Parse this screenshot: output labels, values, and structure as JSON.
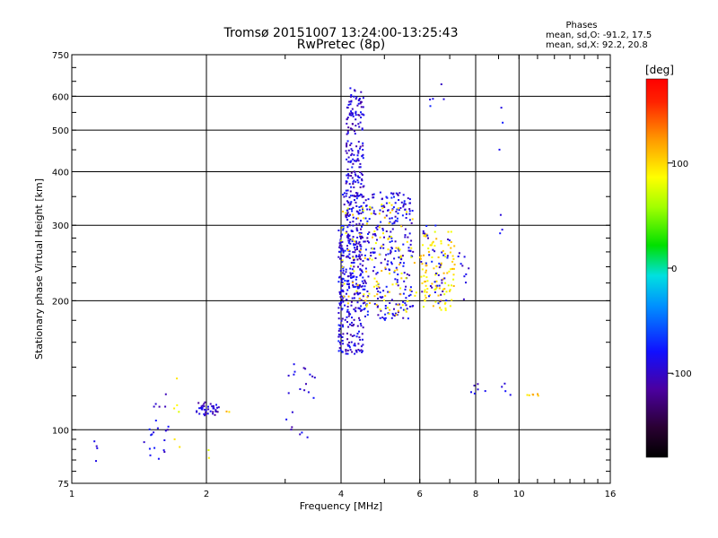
{
  "chart_data": {
    "type": "scatter",
    "title": "Tromsø 20151007 13:24:00-13:25:43",
    "subtitle": "RwPretec (8p)",
    "xlabel": "Frequency [MHz]",
    "ylabel": "Stationary phase Virtual Height [km]",
    "xscale": "log",
    "yscale": "log",
    "xlim": [
      1,
      16
    ],
    "ylim": [
      75,
      750
    ],
    "x_ticks": [
      1,
      2,
      4,
      6,
      8,
      10,
      16
    ],
    "x_tick_labels": [
      "1",
      "2",
      "4",
      "6",
      "8",
      "10",
      "16"
    ],
    "y_ticks": [
      75,
      100,
      200,
      300,
      400,
      500,
      600,
      750
    ],
    "y_tick_labels": [
      "75",
      "100",
      "200",
      "300",
      "400",
      "500",
      "600",
      "750"
    ],
    "grid": true,
    "stats": {
      "title": "Phases",
      "line_o": "mean, sd,O: -91.2, 17.5",
      "line_x": "mean, sd,X:  92.2, 20.8"
    },
    "colorbar": {
      "label": "[deg]",
      "range": [
        -180,
        180
      ],
      "ticks": [
        -100,
        0,
        100
      ],
      "tick_labels": [
        "-100",
        "0",
        "100"
      ],
      "colormap": "rainbow"
    },
    "clusters": [
      {
        "x_range": [
          1.12,
          1.14
        ],
        "y_range": [
          80,
          96
        ],
        "phase": -95,
        "count": 4
      },
      {
        "x_range": [
          1.45,
          1.65
        ],
        "y_range": [
          82,
          130
        ],
        "phase": -90,
        "count": 22
      },
      {
        "x_range": [
          1.6,
          1.75
        ],
        "y_range": [
          83,
          132
        ],
        "phase": 95,
        "count": 6
      },
      {
        "x_range": [
          1.9,
          2.15
        ],
        "y_range": [
          108,
          116
        ],
        "phase": -100,
        "count": 40
      },
      {
        "x_range": [
          2.2,
          2.25
        ],
        "y_range": [
          110,
          112
        ],
        "phase": 100,
        "count": 2
      },
      {
        "x_range": [
          3.0,
          3.5
        ],
        "y_range": [
          95,
          145
        ],
        "phase": -95,
        "count": 22
      },
      {
        "x_range": [
          3.95,
          4.05
        ],
        "y_range": [
          150,
          300
        ],
        "phase": -90,
        "count": 90
      },
      {
        "x_range": [
          4.1,
          4.5
        ],
        "y_range": [
          150,
          630
        ],
        "phase": -95,
        "count": 380
      },
      {
        "x_range": [
          4.0,
          5.8
        ],
        "y_range": [
          180,
          360
        ],
        "phase": -90,
        "count": 360
      },
      {
        "x_range": [
          4.0,
          5.9
        ],
        "y_range": [
          185,
          340
        ],
        "phase": 95,
        "count": 120
      },
      {
        "x_range": [
          6.0,
          7.2
        ],
        "y_range": [
          190,
          290
        ],
        "phase": 95,
        "count": 110
      },
      {
        "x_range": [
          6.0,
          7.0
        ],
        "y_range": [
          195,
          300
        ],
        "phase": -90,
        "count": 40
      },
      {
        "x_range": [
          6.3,
          6.8
        ],
        "y_range": [
          540,
          640
        ],
        "phase": -90,
        "count": 5
      },
      {
        "x_range": [
          7.2,
          7.8
        ],
        "y_range": [
          200,
          260
        ],
        "phase": -95,
        "count": 10
      },
      {
        "x_range": [
          7.8,
          8.5
        ],
        "y_range": [
          120,
          128
        ],
        "phase": -90,
        "count": 6
      },
      {
        "x_range": [
          9.0,
          9.2
        ],
        "y_range": [
          255,
          600
        ],
        "phase": -95,
        "count": 6
      },
      {
        "x_range": [
          9.0,
          9.6
        ],
        "y_range": [
          120,
          130
        ],
        "phase": -90,
        "count": 4
      },
      {
        "x_range": [
          10.4,
          11.2
        ],
        "y_range": [
          120,
          126
        ],
        "phase": 100,
        "count": 6
      },
      {
        "x_range": [
          2.0,
          2.05
        ],
        "y_range": [
          85,
          90
        ],
        "phase": 95,
        "count": 2
      }
    ]
  }
}
